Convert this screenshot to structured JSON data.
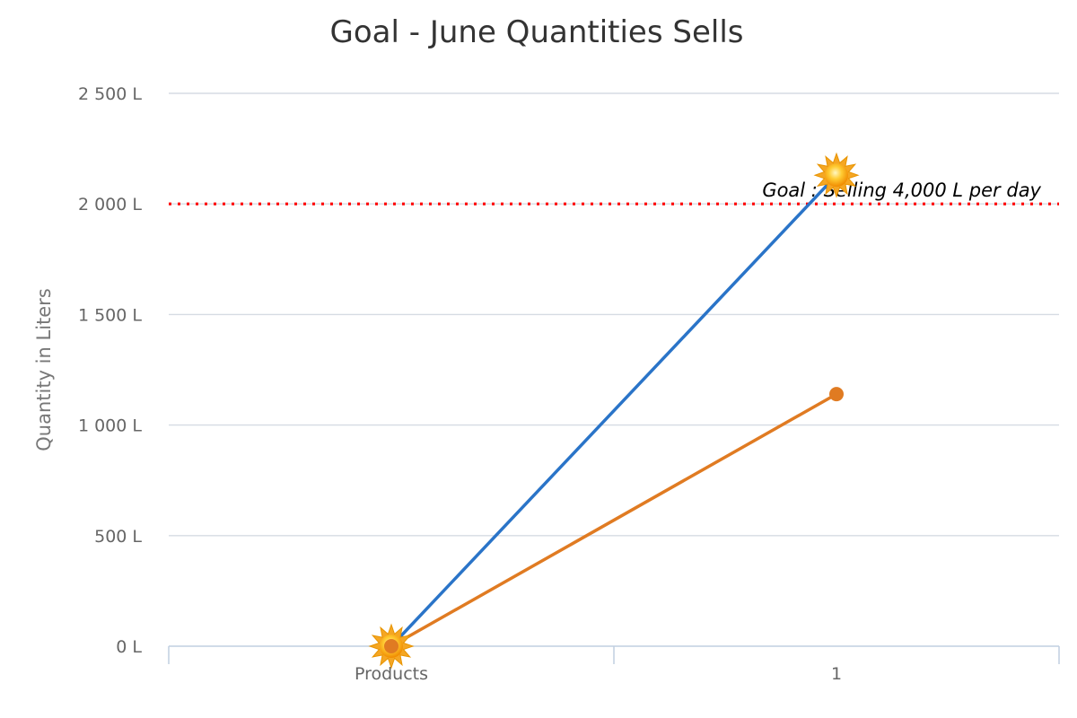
{
  "chart_data": {
    "type": "line",
    "title": "Goal - June Quantities Sells",
    "xlabel": "",
    "ylabel": "Quantity in Liters",
    "categories": [
      "Products",
      "1"
    ],
    "y_tick_labels": [
      "0 L",
      "500 L",
      "1 000 L",
      "1 500 L",
      "2 000 L",
      "2 500 L"
    ],
    "y_ticks": [
      0,
      500,
      1000,
      1500,
      2000,
      2500
    ],
    "ylim": [
      0,
      2500
    ],
    "grid": true,
    "series": [
      {
        "values": [
          0,
          2130
        ],
        "color": "#2a74c8",
        "marker": "sun"
      },
      {
        "values": [
          0,
          1140
        ],
        "color": "#e07b22",
        "marker": "circle"
      }
    ],
    "goal_line": {
      "value": 2000,
      "label": "Goal : Selling 4,000 L per day",
      "color": "#ff0000",
      "style": "dotted"
    }
  }
}
